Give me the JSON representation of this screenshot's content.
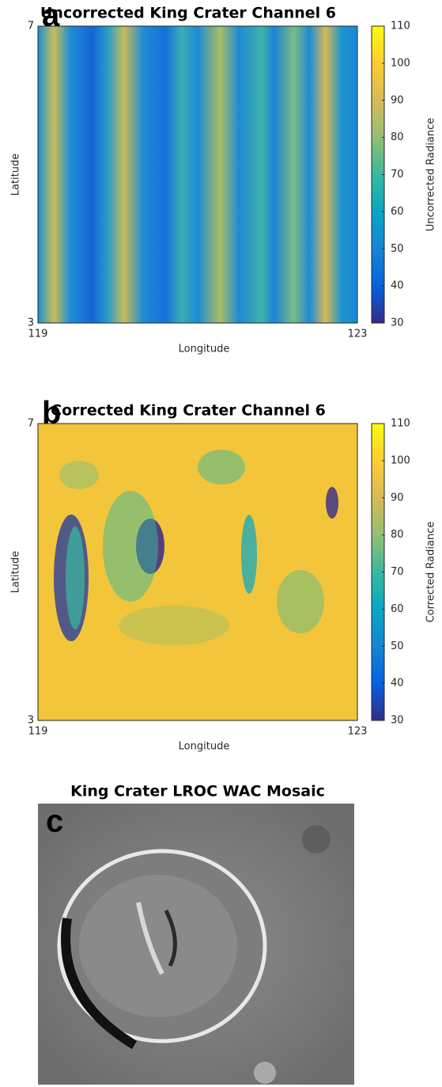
{
  "chart_data": [
    {
      "type": "heatmap",
      "title": "Uncorrected King Crater Channel 6",
      "panel_label": "a",
      "xlabel": "Longitude",
      "ylabel": "Latitude",
      "xlim": [
        119,
        123
      ],
      "xticks": [
        119,
        123
      ],
      "ylim": [
        3,
        7
      ],
      "yticks": [
        3,
        7
      ],
      "colorbar": {
        "label": "Uncorrected Radiance",
        "lim": [
          30,
          110
        ],
        "ticks": [
          30,
          40,
          50,
          60,
          70,
          80,
          90,
          100,
          110
        ]
      },
      "colormap": [
        "#352a87",
        "#0363e1",
        "#1485d4",
        "#06a7c6",
        "#38b99e",
        "#92bf73",
        "#d9ba56",
        "#fcce2e",
        "#f9fb0e"
      ]
    },
    {
      "type": "heatmap",
      "title": "Corrected King Crater Channel 6",
      "panel_label": "b",
      "xlabel": "Longitude",
      "ylabel": "Latitude",
      "xlim": [
        119,
        123
      ],
      "xticks": [
        119,
        123
      ],
      "ylim": [
        3,
        7
      ],
      "yticks": [
        3,
        7
      ],
      "colorbar": {
        "label": "Corrected Radiance",
        "lim": [
          30,
          110
        ],
        "ticks": [
          30,
          40,
          50,
          60,
          70,
          80,
          90,
          100,
          110
        ]
      },
      "colormap": [
        "#352a87",
        "#0363e1",
        "#1485d4",
        "#06a7c6",
        "#38b99e",
        "#92bf73",
        "#d9ba56",
        "#fcce2e",
        "#f9fb0e"
      ]
    },
    {
      "type": "image",
      "title": "King Crater LROC WAC Mosaic",
      "panel_label": "c"
    }
  ]
}
